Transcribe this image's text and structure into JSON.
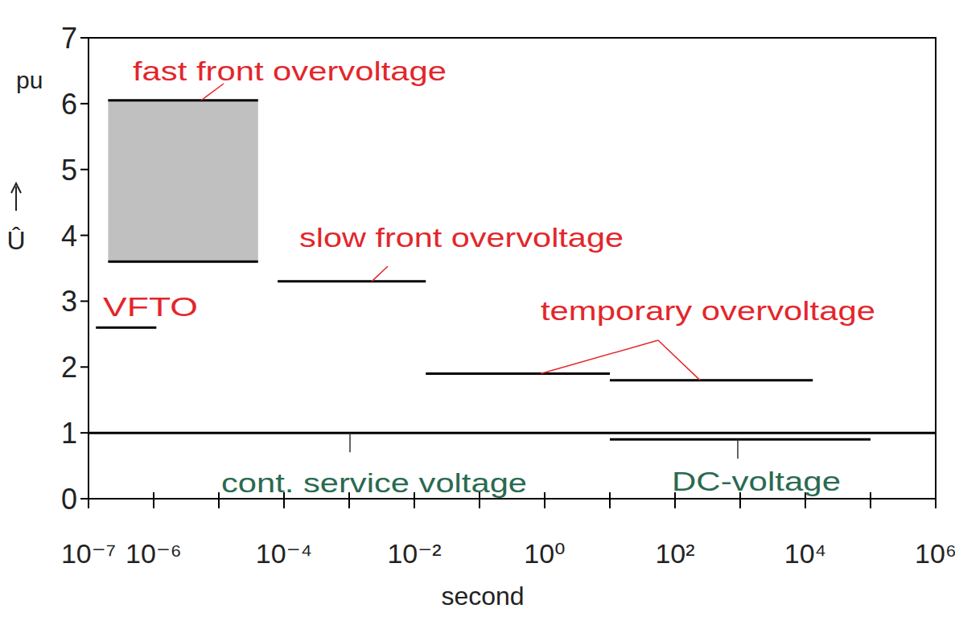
{
  "chart_data": {
    "type": "segment",
    "x_label": "second",
    "y_label": "Û",
    "y_unit": "pu",
    "log": "x",
    "grid": false,
    "xlim": [
      1e-07,
      1000000.0
    ],
    "ylim": [
      0,
      7
    ],
    "xticks": [
      {
        "value": 1e-07,
        "label": "10⁻⁷"
      },
      {
        "value": 1e-06,
        "label": "10⁻⁶"
      },
      {
        "value": 1e-05,
        "label": null
      },
      {
        "value": 0.0001,
        "label": "10⁻⁴"
      },
      {
        "value": 0.001,
        "label": null
      },
      {
        "value": 0.01,
        "label": "10⁻²"
      },
      {
        "value": 0.1,
        "label": null
      },
      {
        "value": 1,
        "label": "10⁰"
      },
      {
        "value": 10,
        "label": null
      },
      {
        "value": 100,
        "label": "10²"
      },
      {
        "value": 1000,
        "label": null
      },
      {
        "value": 10000,
        "label": "10⁴"
      },
      {
        "value": 100000,
        "label": null
      },
      {
        "value": 1000000,
        "label": "10⁶"
      }
    ],
    "yticks": [
      0,
      1,
      2,
      3,
      4,
      5,
      6,
      7
    ],
    "series": [
      {
        "name": "fast front overvoltage",
        "type": "band",
        "color": "#c0c0c0",
        "x": [
          2e-07,
          4e-05
        ],
        "low": [
          3.6,
          3.6
        ],
        "values": [
          6.05,
          6.05
        ]
      },
      {
        "name": "VFTO",
        "type": "line",
        "color": "#000000",
        "x": [
          1.3e-07,
          1.1e-06
        ],
        "values": [
          2.6,
          2.6
        ]
      },
      {
        "name": "slow front overvoltage",
        "type": "line",
        "color": "#000000",
        "x": [
          8e-05,
          0.015
        ],
        "values": [
          3.3,
          3.3
        ]
      },
      {
        "name": "temporary overvoltage",
        "type": "line",
        "color": "#000000",
        "x": [
          0.015,
          10,
          10,
          10,
          13000
        ],
        "values": [
          1.9,
          1.9,
          null,
          1.8,
          1.8
        ]
      },
      {
        "name": "cont. service voltage",
        "type": "level",
        "color": "#000000",
        "x": [
          1e-07,
          1000000
        ],
        "values": [
          1,
          1
        ]
      },
      {
        "name": "DC-voltage",
        "type": "level",
        "color": "#000000",
        "x": [
          10,
          100000
        ],
        "values": [
          0.9,
          0.9
        ]
      }
    ]
  }
}
